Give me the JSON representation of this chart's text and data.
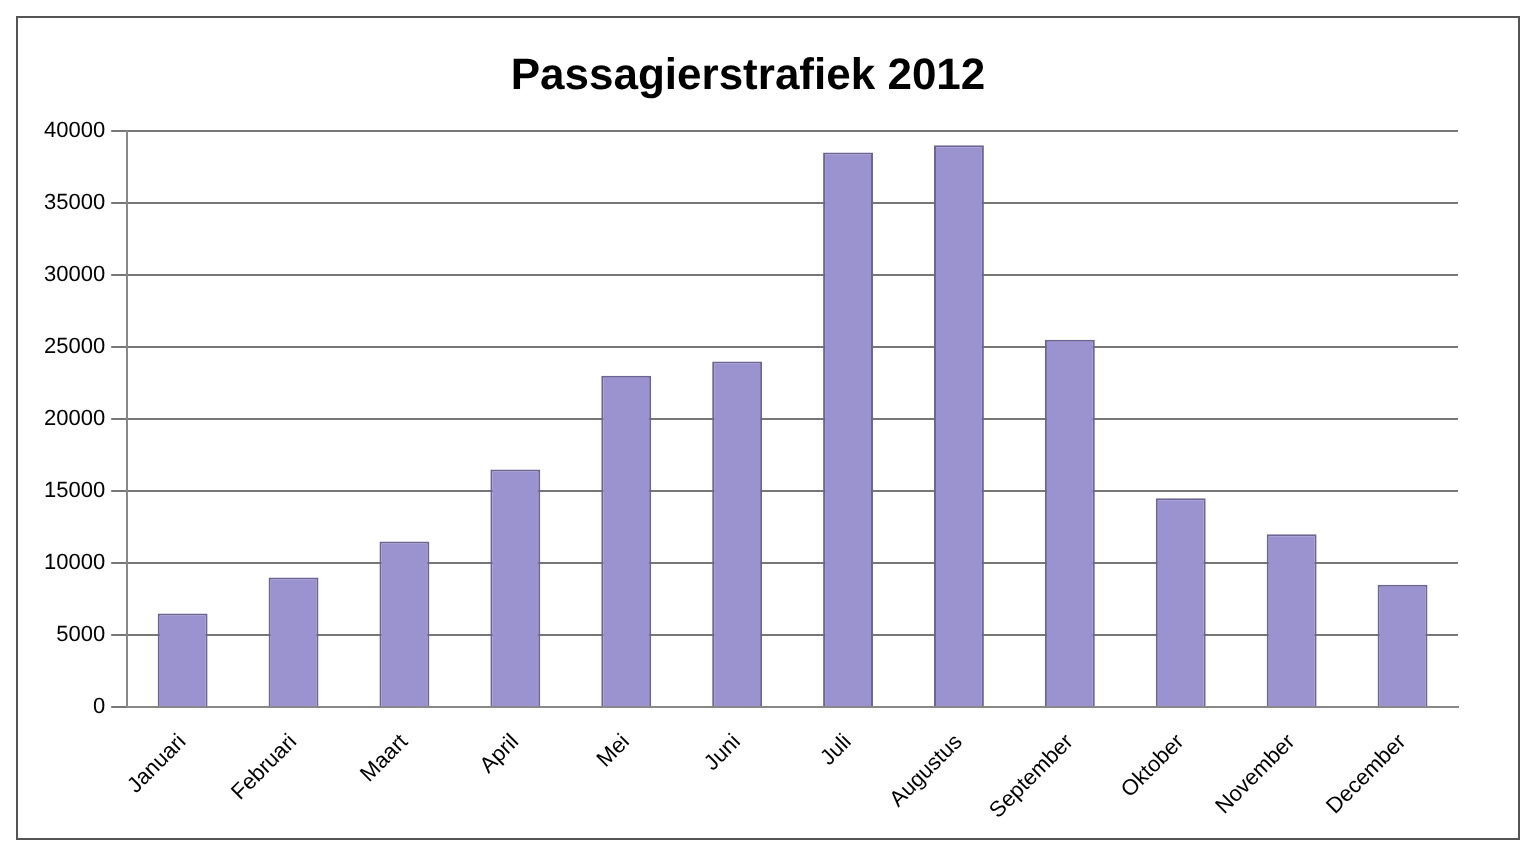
{
  "chart_data": {
    "type": "bar",
    "title": "Passagierstrafiek 2012",
    "categories": [
      "Januari",
      "Februari",
      "Maart",
      "April",
      "Mei",
      "Juni",
      "Juli",
      "Augustus",
      "September",
      "Oktober",
      "November",
      "December"
    ],
    "values": [
      6500,
      9000,
      11500,
      16500,
      23000,
      24000,
      38500,
      39000,
      25500,
      14500,
      12000,
      8500
    ],
    "color": "#9b93cf",
    "ylim": [
      0,
      40000
    ],
    "yticks": [
      0,
      5000,
      10000,
      15000,
      20000,
      25000,
      30000,
      35000,
      40000
    ],
    "grid": "y",
    "legend": false
  }
}
